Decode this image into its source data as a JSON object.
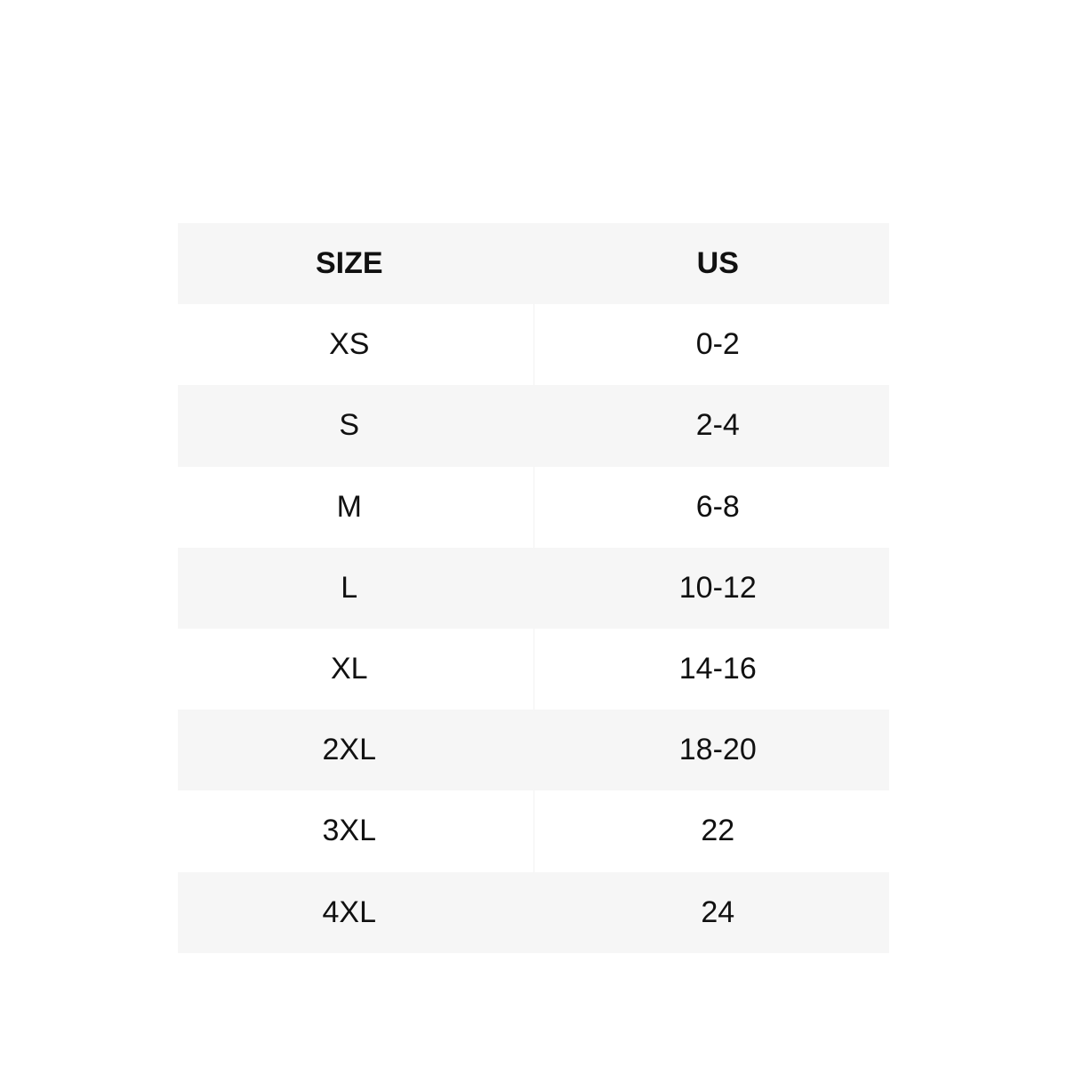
{
  "table": {
    "headers": [
      "SIZE",
      "US"
    ],
    "rows": [
      [
        "XS",
        "0-2"
      ],
      [
        "S",
        "2-4"
      ],
      [
        "M",
        "6-8"
      ],
      [
        "L",
        "10-12"
      ],
      [
        "XL",
        "14-16"
      ],
      [
        "2XL",
        "18-20"
      ],
      [
        "3XL",
        "22"
      ],
      [
        "4XL",
        "24"
      ]
    ]
  },
  "colors": {
    "stripe": "#f6f6f6",
    "background": "#ffffff",
    "text": "#111111"
  }
}
